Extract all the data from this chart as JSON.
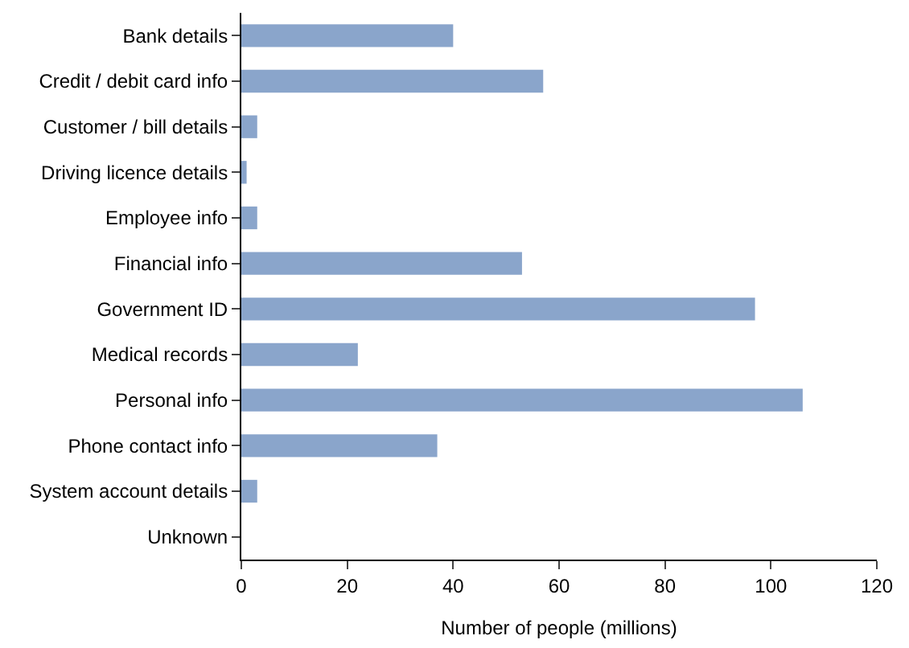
{
  "chart_data": {
    "type": "bar",
    "orientation": "horizontal",
    "xlabel": "Number of people (millions)",
    "categories": [
      "Bank details",
      "Credit / debit card info",
      "Customer / bill details",
      "Driving licence details",
      "Employee info",
      "Financial info",
      "Government ID",
      "Medical records",
      "Personal info",
      "Phone contact info",
      "System account details",
      "Unknown"
    ],
    "values": [
      40,
      57,
      3,
      1,
      3,
      53,
      97,
      22,
      106,
      37,
      3,
      0
    ],
    "color": "#8aa5cb",
    "xlim": [
      0,
      120
    ],
    "xticks": [
      0,
      20,
      40,
      60,
      80,
      100,
      120
    ],
    "grid": false,
    "legend": false
  }
}
